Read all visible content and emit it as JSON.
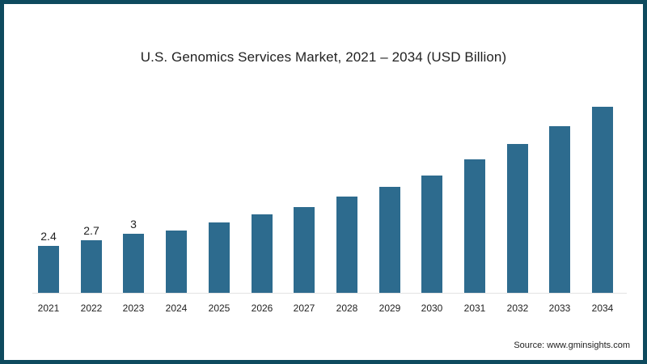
{
  "chart_data": {
    "type": "bar",
    "title": "U.S. Genomics Services Market, 2021 – 2034 (USD Billion)",
    "xlabel": "",
    "ylabel": "",
    "categories": [
      "2021",
      "2022",
      "2023",
      "2024",
      "2025",
      "2026",
      "2027",
      "2028",
      "2029",
      "2030",
      "2031",
      "2032",
      "2033",
      "2034"
    ],
    "values": [
      2.4,
      2.7,
      3.0,
      3.2,
      3.6,
      4.0,
      4.4,
      4.9,
      5.4,
      6.0,
      6.8,
      7.6,
      8.5,
      9.5
    ],
    "data_labels": [
      "2.4",
      "2.7",
      "3",
      null,
      null,
      null,
      null,
      null,
      null,
      null,
      null,
      null,
      null,
      null
    ],
    "bar_color": "#2d6b8e",
    "grid": false,
    "legend": "none",
    "ylim": [
      0,
      10
    ]
  },
  "footer": {
    "source": "Source: www.gminsights.com"
  },
  "colors": {
    "border": "#0e4a5e",
    "bar": "#2d6b8e"
  }
}
